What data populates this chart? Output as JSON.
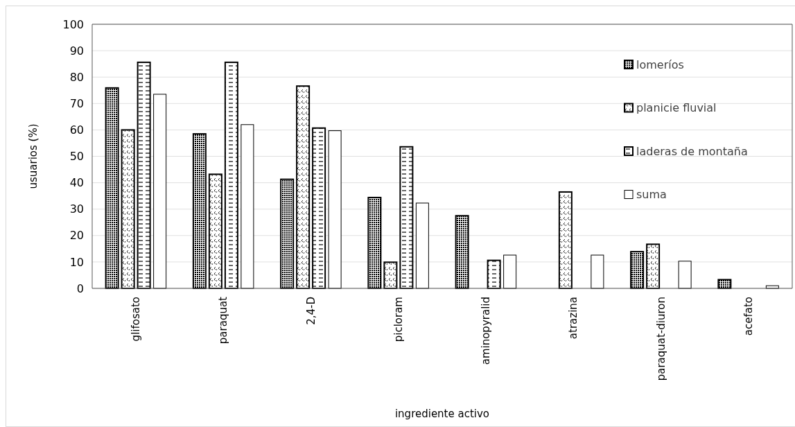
{
  "chart_data": {
    "type": "bar",
    "xlabel": "ingrediente activo",
    "ylabel": "usuarios (%)",
    "categories": [
      "glifosato",
      "paraquat",
      "2,4-D",
      "picloram",
      "aminopyralid",
      "atrazina",
      "paraquat-diuron",
      "acefato"
    ],
    "series": [
      {
        "name": "lomeríos",
        "color": "#000000",
        "values": [
          75.9,
          58.5,
          41.3,
          34.4,
          27.5,
          null,
          13.9,
          3.3
        ]
      },
      {
        "name": "planicie fluvial",
        "color": "#000000",
        "values": [
          60,
          43.2,
          76.6,
          9.9,
          null,
          36.5,
          16.7,
          null
        ]
      },
      {
        "name": "laderas de montaña",
        "color": "#000000",
        "values": [
          85.6,
          85.6,
          60.7,
          53.6,
          10.6,
          null,
          null,
          null
        ]
      },
      {
        "name": "suma",
        "color": "#000000",
        "values": [
          73.5,
          62,
          59.7,
          32.3,
          12.6,
          12.6,
          10.3,
          1
        ]
      }
    ],
    "ylim": [
      0,
      100
    ],
    "yticks": [
      0,
      10,
      20,
      30,
      40,
      50,
      60,
      70,
      80,
      90,
      100
    ],
    "grid": "y",
    "legend": "right"
  }
}
